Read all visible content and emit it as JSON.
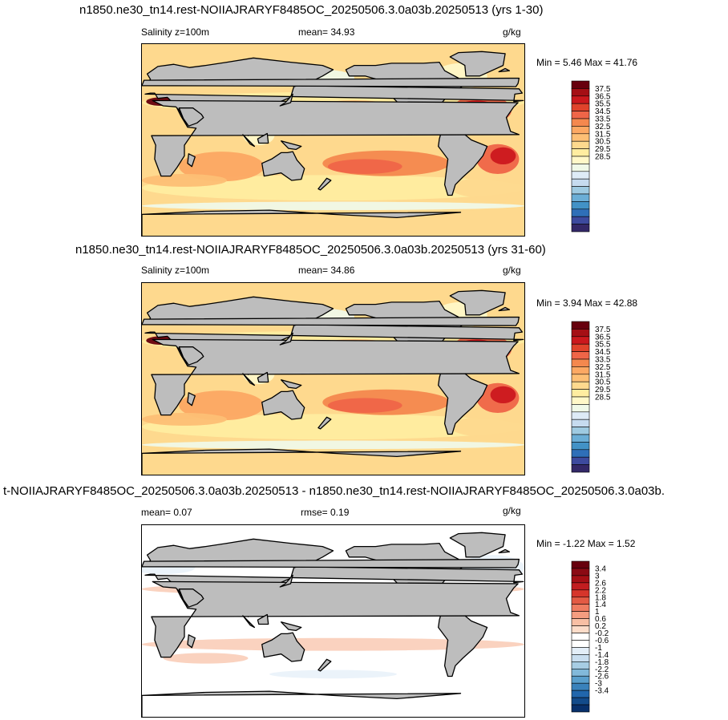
{
  "panels": [
    {
      "title": "n1850.ne30_tn14.rest-NOIIAJRARYF8485OC_20250506.3.0a03b.20250513 (yrs 1-30)",
      "left_label": "Salinity z=100m",
      "center_label": "mean=  34.93",
      "units": "g/kg",
      "minmax": "Min =   5.46 Max =  41.76",
      "kind": "field",
      "colorbar": {
        "labels": [
          "37.5",
          "36.5",
          "35.5",
          "34.5",
          "33.5",
          "32.5",
          "31.5",
          "30.5",
          "29.5",
          "28.5"
        ],
        "colors": [
          "#67000d",
          "#a50f15",
          "#cb181d",
          "#e0432b",
          "#ef6548",
          "#f4884e",
          "#fca863",
          "#fdbf75",
          "#fed98e",
          "#ffeda0",
          "#fff8c8",
          "#f0f9e8",
          "#deebf7",
          "#c6dbef",
          "#9ecae1",
          "#6baed6",
          "#4292c6",
          "#2f6fb8",
          "#3d4a9e",
          "#332868"
        ]
      }
    },
    {
      "title": "n1850.ne30_tn14.rest-NOIIAJRARYF8485OC_20250506.3.0a03b.20250513 (yrs 31-60)",
      "left_label": "Salinity z=100m",
      "center_label": "mean=  34.86",
      "units": "g/kg",
      "minmax": "Min =   3.94 Max =  42.88",
      "kind": "field",
      "colorbar": {
        "labels": [
          "37.5",
          "36.5",
          "35.5",
          "34.5",
          "33.5",
          "32.5",
          "31.5",
          "30.5",
          "29.5",
          "28.5"
        ],
        "colors": [
          "#67000d",
          "#a50f15",
          "#cb181d",
          "#e0432b",
          "#ef6548",
          "#f4884e",
          "#fca863",
          "#fdbf75",
          "#fed98e",
          "#ffeda0",
          "#fff8c8",
          "#f0f9e8",
          "#deebf7",
          "#c6dbef",
          "#9ecae1",
          "#6baed6",
          "#4292c6",
          "#2f6fb8",
          "#3d4a9e",
          "#332868"
        ]
      }
    },
    {
      "title": "t-NOIIAJRARYF8485OC_20250506.3.0a03b.20250513 - n1850.ne30_tn14.rest-NOIIAJRARYF8485OC_20250506.3.0a03b.",
      "left_label": "mean=   0.07",
      "center_label": "rmse=   0.19",
      "units": "g/kg",
      "minmax": "Min =  -1.22 Max =   1.52",
      "kind": "diff",
      "colorbar": {
        "labels": [
          "3.4",
          "3",
          "2.6",
          "2.2",
          "1.8",
          "1.4",
          "1",
          "0.6",
          "0.2",
          "-0.2",
          "-0.6",
          "-1",
          "-1.4",
          "-1.8",
          "-2.2",
          "-2.6",
          "-3",
          "-3.4"
        ],
        "colors": [
          "#67000d",
          "#8b0a14",
          "#a50f15",
          "#c21d20",
          "#d6352b",
          "#e35a44",
          "#ef7c61",
          "#f49d80",
          "#f8bfa4",
          "#fcdcc9",
          "#ffffff",
          "#ffffff",
          "#e3eef8",
          "#c9def0",
          "#a7cde4",
          "#82b9da",
          "#5a9fcc",
          "#3a82bb",
          "#2166ac",
          "#134b8a",
          "#08306b"
        ]
      }
    }
  ]
}
